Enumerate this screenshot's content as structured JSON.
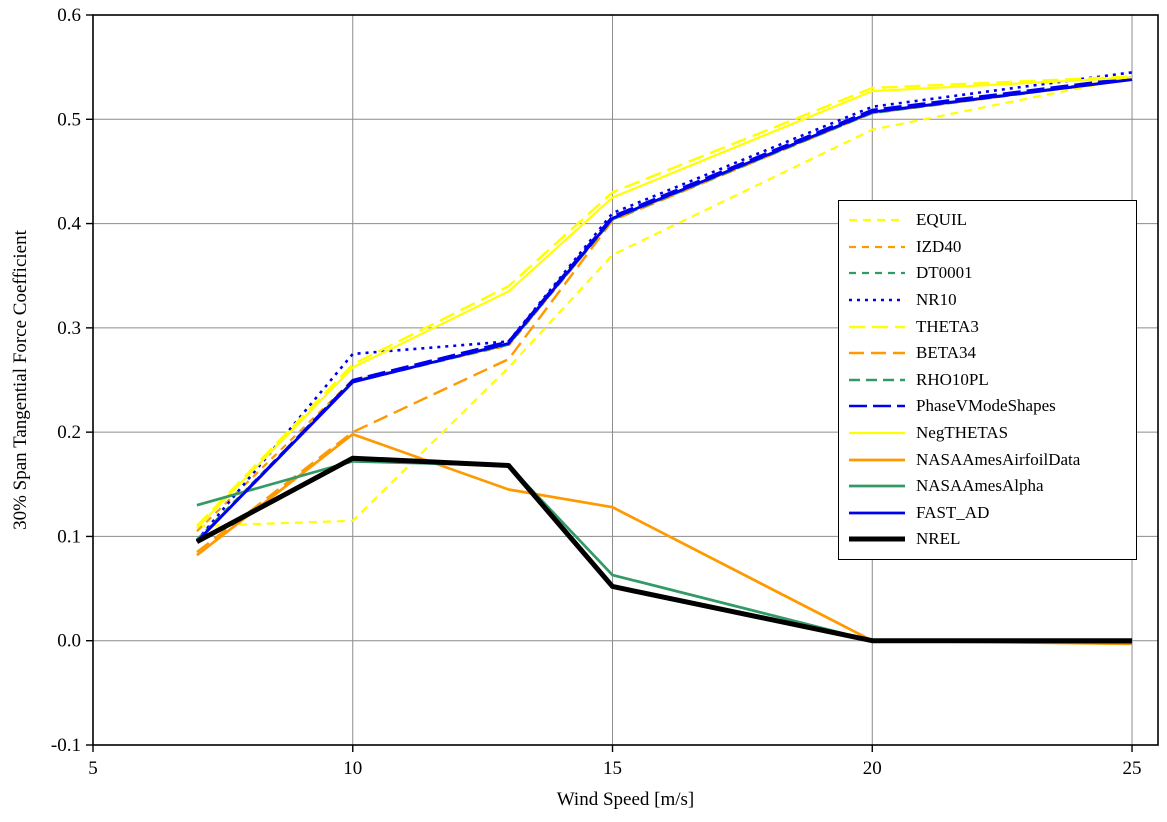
{
  "chart_data": {
    "type": "line",
    "title": "",
    "xlabel": "Wind Speed [m/s]",
    "ylabel": "30% Span Tangential Force Coefficient",
    "x": [
      7,
      10,
      13,
      15,
      20,
      25
    ],
    "xlim": [
      5,
      25.5
    ],
    "ylim": [
      -0.1,
      0.6
    ],
    "xticks": [
      5,
      10,
      15,
      20,
      25
    ],
    "yticks": [
      -0.1,
      0.0,
      0.1,
      0.2,
      0.3,
      0.4,
      0.5,
      0.6
    ],
    "grid": true,
    "legend_position": "inside-right",
    "series": [
      {
        "name": "EQUIL",
        "color": "#ffff00",
        "dash": "8 6",
        "width": 2.2,
        "values": [
          0.11,
          0.115,
          0.262,
          0.37,
          0.49,
          0.54
        ]
      },
      {
        "name": "IZD40",
        "color": "#ff9900",
        "dash": "7 6",
        "width": 2.2,
        "values": [
          0.105,
          0.25,
          0.283,
          0.404,
          0.506,
          0.539
        ]
      },
      {
        "name": "DT0001",
        "color": "#339966",
        "dash": "7 6",
        "width": 2.2,
        "values": [
          0.097,
          0.249,
          0.284,
          0.405,
          0.507,
          0.539
        ]
      },
      {
        "name": "NR10",
        "color": "#0000ee",
        "dash": "3 5",
        "width": 2.6,
        "values": [
          0.096,
          0.275,
          0.287,
          0.41,
          0.512,
          0.545
        ]
      },
      {
        "name": "THETA3",
        "color": "#ffff00",
        "dash": "16 7",
        "width": 2.4,
        "values": [
          0.11,
          0.265,
          0.34,
          0.43,
          0.53,
          0.541
        ]
      },
      {
        "name": "BETA34",
        "color": "#ff9900",
        "dash": "15 7",
        "width": 2.4,
        "values": [
          0.085,
          0.2,
          0.27,
          0.403,
          0.506,
          0.538
        ]
      },
      {
        "name": "RHO10PL",
        "color": "#339966",
        "dash": "11 6",
        "width": 2.4,
        "values": [
          0.096,
          0.248,
          0.284,
          0.404,
          0.506,
          0.538
        ]
      },
      {
        "name": "PhaseVModeShapes",
        "color": "#0000ee",
        "dash": "18 6",
        "width": 2.4,
        "values": [
          0.095,
          0.25,
          0.287,
          0.407,
          0.509,
          0.54
        ]
      },
      {
        "name": "NegTHETAS",
        "color": "#ffff00",
        "dash": "",
        "width": 2.2,
        "values": [
          0.108,
          0.262,
          0.335,
          0.425,
          0.527,
          0.54
        ]
      },
      {
        "name": "NASAAmesAirfoilData",
        "color": "#ff9900",
        "dash": "",
        "width": 2.7,
        "values": [
          0.082,
          0.198,
          0.145,
          0.128,
          0.0,
          -0.003
        ]
      },
      {
        "name": "NASAAmesAlpha",
        "color": "#339966",
        "dash": "",
        "width": 2.7,
        "values": [
          0.13,
          0.172,
          0.168,
          0.063,
          0.0,
          -0.002
        ]
      },
      {
        "name": "FAST_AD",
        "color": "#0000ee",
        "dash": "",
        "width": 2.8,
        "values": [
          0.095,
          0.248,
          0.285,
          0.405,
          0.507,
          0.538
        ]
      },
      {
        "name": "NREL",
        "color": "#000000",
        "dash": "",
        "width": 5.0,
        "values": [
          0.095,
          0.175,
          0.168,
          0.052,
          0.0,
          0.0
        ]
      }
    ]
  }
}
